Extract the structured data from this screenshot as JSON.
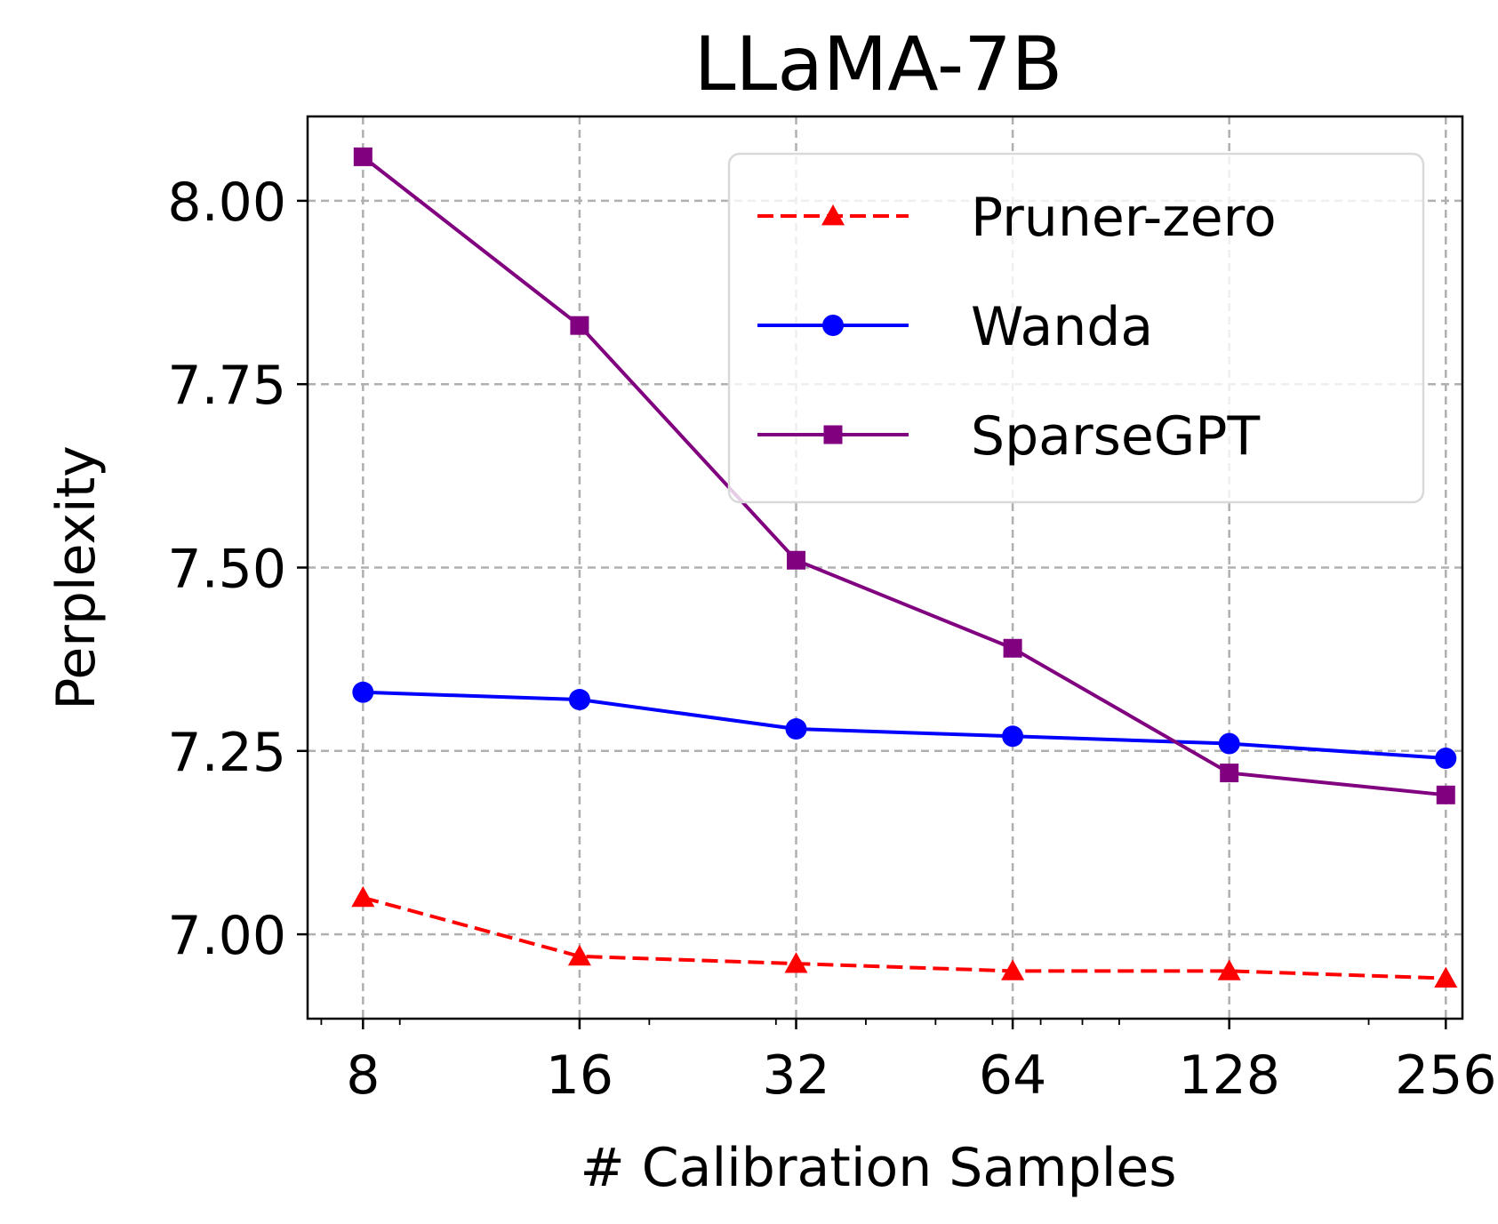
{
  "chart_data": {
    "type": "line",
    "title": "LLaMA-7B",
    "xlabel": "# Calibration Samples",
    "ylabel": "Perplexity",
    "x_scale": "log2",
    "x": [
      8,
      16,
      32,
      64,
      128,
      256
    ],
    "x_tick_labels": [
      "8",
      "16",
      "32",
      "64",
      "128",
      "256"
    ],
    "y_ticks": [
      7.0,
      7.25,
      7.5,
      7.75,
      8.0
    ],
    "y_tick_labels": [
      "7.00",
      "7.25",
      "7.50",
      "7.75",
      "8.00"
    ],
    "ylim": [
      6.885,
      8.115
    ],
    "xlim": [
      6.7,
      270
    ],
    "grid": true,
    "legend_position": "upper-right",
    "series": [
      {
        "name": "Pruner-zero",
        "color": "#ff0000",
        "linestyle": "dashed",
        "marker": "triangle",
        "values": [
          7.05,
          6.97,
          6.96,
          6.95,
          6.95,
          6.94
        ]
      },
      {
        "name": "Wanda",
        "color": "#0000ff",
        "linestyle": "solid",
        "marker": "circle",
        "values": [
          7.33,
          7.32,
          7.28,
          7.27,
          7.26,
          7.24
        ]
      },
      {
        "name": "SparseGPT",
        "color": "#800080",
        "linestyle": "solid",
        "marker": "square",
        "values": [
          8.06,
          7.83,
          7.51,
          7.39,
          7.22,
          7.19
        ]
      }
    ]
  }
}
